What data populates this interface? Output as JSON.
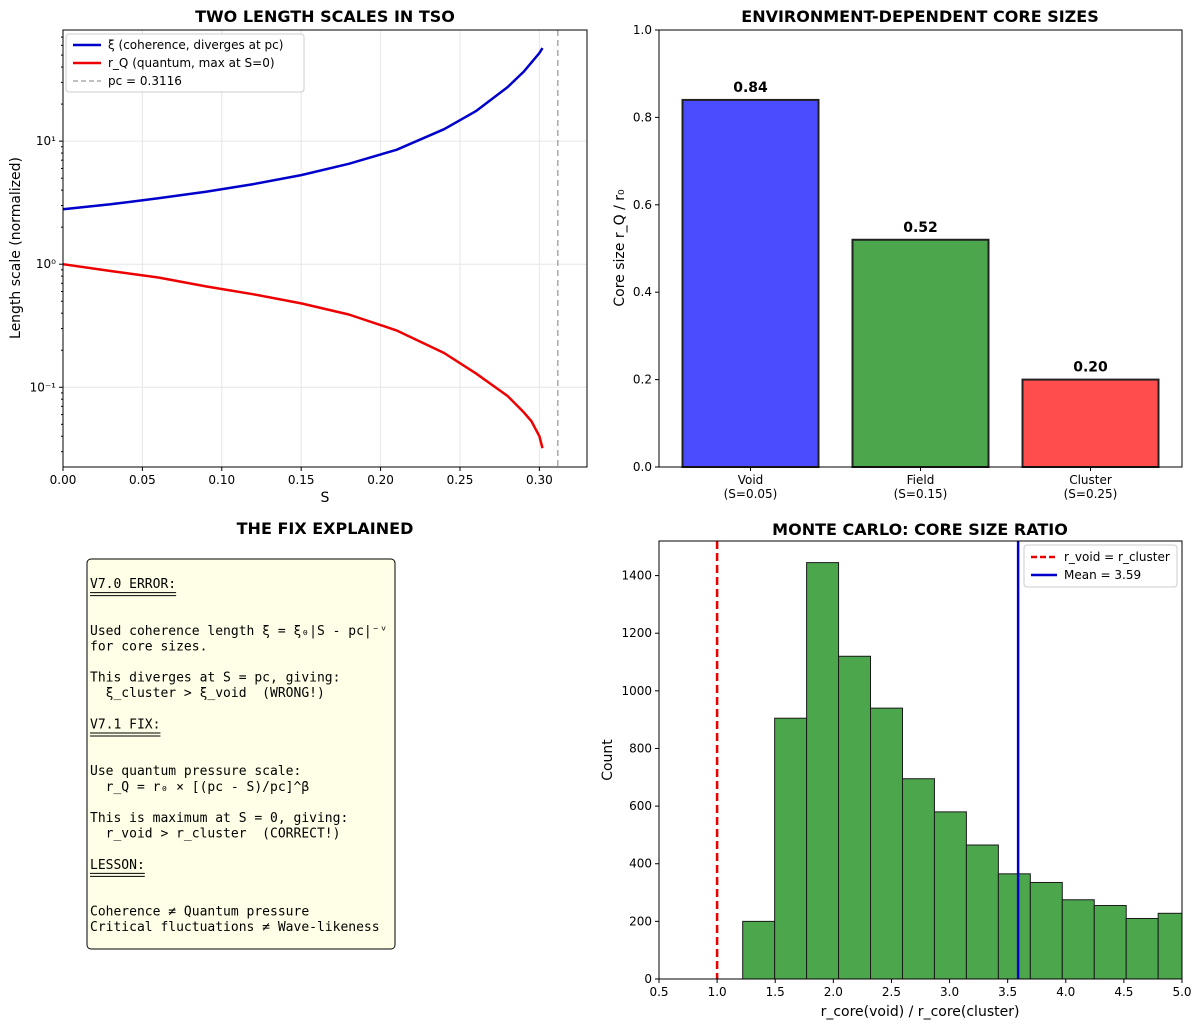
{
  "chart_data": [
    {
      "type": "line",
      "title": "TWO LENGTH SCALES IN TSO",
      "xlabel": "S",
      "ylabel": "Length scale (normalized)",
      "yscale": "log",
      "xlim": [
        0.0,
        0.33
      ],
      "xticks": [
        "0.00",
        "0.05",
        "0.10",
        "0.15",
        "0.20",
        "0.25",
        "0.30"
      ],
      "yticks": [
        "10⁻¹",
        "10⁰",
        "10¹"
      ],
      "grid": true,
      "legend_position": "upper-left",
      "series": [
        {
          "name": "ξ (coherence, diverges at pc)",
          "color": "#0000cc",
          "x": [
            0.0,
            0.03,
            0.06,
            0.09,
            0.12,
            0.15,
            0.18,
            0.21,
            0.24,
            0.26,
            0.28,
            0.29,
            0.295,
            0.3,
            0.302
          ],
          "y": [
            2.8,
            3.07,
            3.43,
            3.88,
            4.48,
            5.3,
            6.55,
            8.5,
            12.5,
            17.5,
            27.5,
            36.5,
            43.5,
            52.0,
            57.0
          ]
        },
        {
          "name": "r_Q (quantum, max at S=0)",
          "color": "#ee0000",
          "x": [
            0.0,
            0.03,
            0.06,
            0.09,
            0.12,
            0.15,
            0.18,
            0.21,
            0.24,
            0.26,
            0.28,
            0.29,
            0.295,
            0.3,
            0.302
          ],
          "y": [
            1.0,
            0.88,
            0.78,
            0.66,
            0.57,
            0.48,
            0.39,
            0.29,
            0.19,
            0.13,
            0.085,
            0.063,
            0.053,
            0.04,
            0.032
          ]
        }
      ],
      "reference_line": {
        "label": "pc = 0.3116",
        "x": 0.3116,
        "color": "#aaaaaa",
        "style": "dashed"
      }
    },
    {
      "type": "bar",
      "title": "ENVIRONMENT-DEPENDENT CORE SIZES",
      "ylabel": "Core size r_Q / r₀",
      "ylim": [
        0.0,
        1.0
      ],
      "yticks": [
        "0.0",
        "0.2",
        "0.4",
        "0.6",
        "0.8",
        "1.0"
      ],
      "categories": [
        "Void",
        "Field",
        "Cluster"
      ],
      "category_sublabels": [
        "(S=0.05)",
        "(S=0.15)",
        "(S=0.25)"
      ],
      "values": [
        0.84,
        0.52,
        0.2
      ],
      "value_labels": [
        "0.84",
        "0.52",
        "0.20"
      ],
      "colors": [
        "#4c4cff",
        "#4ca64c",
        "#ff4c4c"
      ]
    },
    {
      "type": "histogram",
      "title": "MONTE CARLO: CORE SIZE RATIO",
      "xlabel": "r_core(void) / r_core(cluster)",
      "ylabel": "Count",
      "xlim": [
        0.5,
        5.0
      ],
      "ylim": [
        0,
        1520
      ],
      "xticks": [
        "0.5",
        "1.0",
        "1.5",
        "2.0",
        "2.5",
        "3.0",
        "3.5",
        "4.0",
        "4.5",
        "5.0"
      ],
      "yticks": [
        "0",
        "200",
        "400",
        "600",
        "800",
        "1000",
        "1200",
        "1400"
      ],
      "bin_edges": [
        1.22,
        1.495,
        1.77,
        2.045,
        2.32,
        2.595,
        2.87,
        3.145,
        3.42,
        3.695,
        3.97,
        4.245,
        4.52,
        4.795,
        5.07
      ],
      "counts": [
        200,
        905,
        1445,
        1120,
        940,
        695,
        580,
        465,
        365,
        335,
        275,
        255,
        210,
        228
      ],
      "bar_color": "#4ca64c",
      "reference_lines": [
        {
          "label": "r_void = r_cluster",
          "x": 1.0,
          "color": "#ee0000",
          "style": "dashed"
        },
        {
          "label": "Mean = 3.59",
          "x": 3.59,
          "color": "#0000cc",
          "style": "solid"
        }
      ]
    }
  ],
  "text_panel": {
    "title": "THE FIX EXPLAINED",
    "lines": [
      "V7.0 ERROR:",
      "═══════════",
      "",
      "Used coherence length ξ = ξ₀|S - pc|⁻ᵛ",
      "for core sizes.",
      "",
      "This diverges at S = pc, giving:",
      "  ξ_cluster > ξ_void  (WRONG!)",
      "",
      "V7.1 FIX:",
      "═════════",
      "",
      "Use quantum pressure scale:",
      "  r_Q = r₀ × [(pc - S)/pc]^β",
      "",
      "This is maximum at S = 0, giving:",
      "  r_void > r_cluster  (CORRECT!)",
      "",
      "LESSON:",
      "═══════",
      "",
      "Coherence ≠ Quantum pressure",
      "Critical fluctuations ≠ Wave-likeness"
    ]
  },
  "colors": {
    "grid": "#e6e6e6",
    "panel_background": "#fffee6"
  }
}
